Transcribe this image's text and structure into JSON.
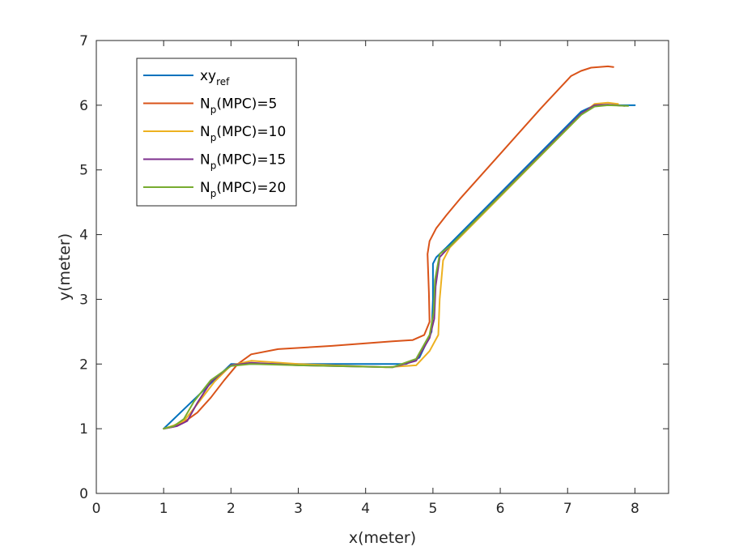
{
  "chart_data": {
    "type": "line",
    "title": "",
    "xlabel": "x(meter)",
    "ylabel": "y(meter)",
    "xlim": [
      0,
      8.5
    ],
    "ylim": [
      0,
      7
    ],
    "xticks": [
      0,
      1,
      2,
      3,
      4,
      5,
      6,
      7,
      8
    ],
    "yticks": [
      0,
      1,
      2,
      3,
      4,
      5,
      6,
      7
    ],
    "xtick_labels": [
      "0",
      "1",
      "2",
      "3",
      "4",
      "5",
      "6",
      "7",
      "8"
    ],
    "ytick_labels": [
      "0",
      "1",
      "2",
      "3",
      "4",
      "5",
      "6",
      "7"
    ],
    "grid": false,
    "legend_position": "top-left",
    "series": [
      {
        "name": "xy_ref",
        "legend": {
          "base": "xy",
          "sub": "ref",
          "suffix": ""
        },
        "color": "#0072BD",
        "x": [
          1.0,
          2.0,
          2.2,
          4.6,
          4.8,
          4.98,
          5.0,
          5.0,
          5.05,
          5.2,
          7.2,
          7.4,
          8.0
        ],
        "y": [
          1.0,
          2.0,
          2.0,
          2.0,
          2.1,
          2.5,
          3.0,
          3.55,
          3.65,
          3.8,
          5.9,
          6.0,
          6.0
        ]
      },
      {
        "name": "N_p(MPC)=5",
        "legend": {
          "base": "N",
          "sub": "p",
          "suffix": "(MPC)=5"
        },
        "color": "#D95319",
        "x": [
          1.0,
          1.15,
          1.3,
          1.5,
          1.7,
          1.9,
          2.1,
          2.3,
          2.7,
          3.5,
          4.4,
          4.7,
          4.87,
          4.95,
          4.94,
          4.92,
          4.95,
          5.05,
          5.2,
          5.4,
          6.0,
          6.6,
          7.05,
          7.2,
          7.35,
          7.6,
          7.68
        ],
        "y": [
          1.0,
          1.03,
          1.1,
          1.25,
          1.48,
          1.75,
          2.0,
          2.15,
          2.23,
          2.28,
          2.35,
          2.37,
          2.45,
          2.65,
          3.1,
          3.7,
          3.9,
          4.1,
          4.3,
          4.55,
          5.25,
          5.95,
          6.45,
          6.53,
          6.58,
          6.6,
          6.59
        ]
      },
      {
        "name": "N_p(MPC)=10",
        "legend": {
          "base": "N",
          "sub": "p",
          "suffix": "(MPC)=10"
        },
        "color": "#EDB120",
        "x": [
          1.0,
          1.15,
          1.3,
          1.5,
          1.75,
          2.0,
          2.3,
          3.0,
          4.3,
          4.75,
          4.95,
          5.08,
          5.1,
          5.15,
          5.25,
          7.2,
          7.4,
          7.6,
          7.75
        ],
        "y": [
          1.0,
          1.05,
          1.12,
          1.38,
          1.72,
          1.98,
          2.05,
          2.0,
          1.95,
          1.98,
          2.2,
          2.45,
          3.0,
          3.6,
          3.8,
          5.85,
          6.02,
          6.04,
          6.02
        ]
      },
      {
        "name": "N_p(MPC)=15",
        "legend": {
          "base": "N",
          "sub": "p",
          "suffix": "(MPC)=15"
        },
        "color": "#7E2F8E",
        "x": [
          1.0,
          1.2,
          1.35,
          1.5,
          1.7,
          2.0,
          2.3,
          3.0,
          4.4,
          4.75,
          4.95,
          5.02,
          5.04,
          5.1,
          5.25,
          7.2,
          7.4,
          7.6,
          7.85
        ],
        "y": [
          1.0,
          1.04,
          1.12,
          1.4,
          1.72,
          1.98,
          2.02,
          1.98,
          1.95,
          2.05,
          2.4,
          2.7,
          3.2,
          3.65,
          3.82,
          5.87,
          6.0,
          6.01,
          5.99
        ]
      },
      {
        "name": "N_p(MPC)=20",
        "legend": {
          "base": "N",
          "sub": "p",
          "suffix": "(MPC)=20"
        },
        "color": "#77AC30",
        "x": [
          1.0,
          1.15,
          1.3,
          1.45,
          1.7,
          2.0,
          2.3,
          3.0,
          4.4,
          4.75,
          4.95,
          5.01,
          5.03,
          5.1,
          5.25,
          7.2,
          7.4,
          7.6,
          7.9
        ],
        "y": [
          1.0,
          1.04,
          1.15,
          1.42,
          1.75,
          1.97,
          2.0,
          1.98,
          1.95,
          2.08,
          2.45,
          2.8,
          3.3,
          3.7,
          3.82,
          5.85,
          5.98,
          6.0,
          5.99
        ]
      }
    ]
  }
}
